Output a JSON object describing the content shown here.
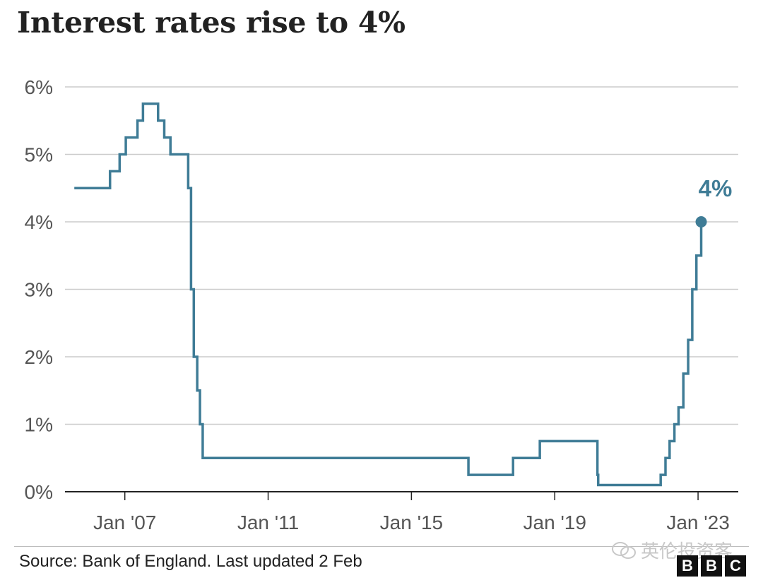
{
  "title": "Interest rates rise to 4%",
  "source": "Source: Bank of England. Last updated 2 Feb",
  "watermark": "英伦投资客",
  "logo": [
    "B",
    "B",
    "C"
  ],
  "colors": {
    "line": "#3f7c96",
    "grid": "#cccccc",
    "axis": "#222222",
    "text": "#555555"
  },
  "chart_data": {
    "type": "line",
    "title": "Interest rates rise to 4%",
    "xlabel": "",
    "ylabel": "",
    "ylim": [
      0,
      6
    ],
    "xlim": [
      "2005-05-01",
      "2024-02-15"
    ],
    "y_ticks": [
      0,
      1,
      2,
      3,
      4,
      5,
      6
    ],
    "y_tick_labels": [
      "0%",
      "1%",
      "2%",
      "3%",
      "4%",
      "5%",
      "6%"
    ],
    "x_ticks": [
      "2007-01-01",
      "2011-01-01",
      "2015-01-01",
      "2019-01-01",
      "2023-01-01"
    ],
    "x_tick_labels": [
      "Jan '07",
      "Jan '11",
      "Jan '15",
      "Jan '19",
      "Jan '23"
    ],
    "grid": true,
    "end_label": "4%",
    "series": [
      {
        "step": true,
        "points": [
          [
            "2005-08-04",
            4.5
          ],
          [
            "2006-08-03",
            4.75
          ],
          [
            "2006-11-09",
            5.0
          ],
          [
            "2007-01-11",
            5.25
          ],
          [
            "2007-05-10",
            5.5
          ],
          [
            "2007-07-05",
            5.75
          ],
          [
            "2007-12-06",
            5.5
          ],
          [
            "2008-02-07",
            5.25
          ],
          [
            "2008-04-10",
            5.0
          ],
          [
            "2008-10-08",
            4.5
          ],
          [
            "2008-11-06",
            3.0
          ],
          [
            "2008-12-04",
            2.0
          ],
          [
            "2009-01-08",
            1.5
          ],
          [
            "2009-02-05",
            1.0
          ],
          [
            "2009-03-05",
            0.5
          ],
          [
            "2016-08-04",
            0.25
          ],
          [
            "2017-11-02",
            0.5
          ],
          [
            "2018-08-02",
            0.75
          ],
          [
            "2020-03-11",
            0.25
          ],
          [
            "2020-03-19",
            0.1
          ],
          [
            "2021-12-16",
            0.25
          ],
          [
            "2022-02-03",
            0.5
          ],
          [
            "2022-03-17",
            0.75
          ],
          [
            "2022-05-05",
            1.0
          ],
          [
            "2022-06-16",
            1.25
          ],
          [
            "2022-08-04",
            1.75
          ],
          [
            "2022-09-22",
            2.25
          ],
          [
            "2022-11-03",
            3.0
          ],
          [
            "2022-12-15",
            3.5
          ],
          [
            "2023-02-02",
            4.0
          ]
        ]
      }
    ]
  }
}
